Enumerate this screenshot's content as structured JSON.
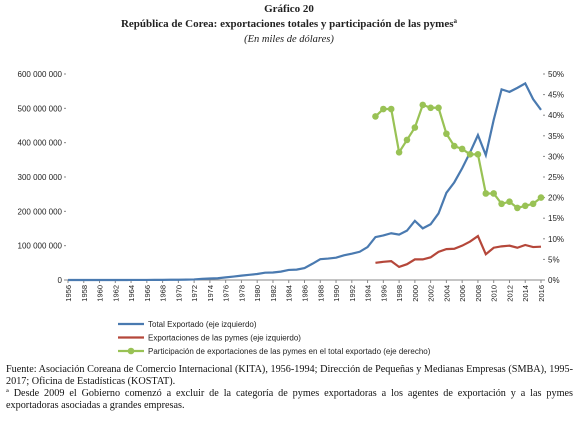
{
  "chart_data": {
    "type": "line",
    "title": "Gráfico 20",
    "subtitle": "República de Corea: exportaciones totales y participación de las pymes",
    "subtitle_superscript": "a",
    "unit_note": "(En miles de dólares)",
    "x": [
      1956,
      1957,
      1958,
      1959,
      1960,
      1961,
      1962,
      1963,
      1964,
      1965,
      1966,
      1967,
      1968,
      1969,
      1970,
      1971,
      1972,
      1973,
      1974,
      1975,
      1976,
      1977,
      1978,
      1979,
      1980,
      1981,
      1982,
      1983,
      1984,
      1985,
      1986,
      1987,
      1988,
      1989,
      1990,
      1991,
      1992,
      1993,
      1994,
      1995,
      1996,
      1997,
      1998,
      1999,
      2000,
      2001,
      2002,
      2003,
      2004,
      2005,
      2006,
      2007,
      2008,
      2009,
      2010,
      2011,
      2012,
      2013,
      2014,
      2015,
      2016
    ],
    "xlim": [
      1956,
      2016
    ],
    "xticks": [
      1956,
      1958,
      1960,
      1962,
      1964,
      1966,
      1968,
      1970,
      1972,
      1974,
      1976,
      1978,
      1980,
      1982,
      1984,
      1986,
      1988,
      1990,
      1992,
      1994,
      1996,
      1998,
      2000,
      2002,
      2004,
      2006,
      2008,
      2010,
      2012,
      2014,
      2016
    ],
    "ylim": [
      0,
      600000000
    ],
    "yticks": [
      0,
      {
        "value": 100000000,
        "label": "100 000 000"
      },
      {
        "value": 200000000,
        "label": "200 000 000"
      },
      {
        "value": 300000000,
        "label": "300 000 000"
      },
      {
        "value": 400000000,
        "label": "400 000 000"
      },
      {
        "value": 500000000,
        "label": "500 000 000"
      },
      {
        "value": 600000000,
        "label": "600 000 000"
      }
    ],
    "y2lim": [
      0,
      50
    ],
    "y2ticks": [
      {
        "value": 0,
        "label": "0%"
      },
      {
        "value": 5,
        "label": "5%"
      },
      {
        "value": 10,
        "label": "10%"
      },
      {
        "value": 15,
        "label": "15%"
      },
      {
        "value": 20,
        "label": "20%"
      },
      {
        "value": 25,
        "label": "25%"
      },
      {
        "value": 30,
        "label": "30%"
      },
      {
        "value": 35,
        "label": "35%"
      },
      {
        "value": 40,
        "label": "40%"
      },
      {
        "value": 45,
        "label": "45%"
      },
      {
        "value": 50,
        "label": "50%"
      }
    ],
    "series": [
      {
        "name": "Total Exportado (eje izquierdo)",
        "color": "#4a7ab0",
        "axis": "y",
        "values": [
          25000,
          22000,
          17000,
          20000,
          33000,
          41000,
          55000,
          87000,
          119000,
          175000,
          250000,
          320000,
          455000,
          623000,
          835000,
          1068000,
          1624000,
          3225000,
          4460000,
          5081000,
          7715000,
          10047000,
          12711000,
          15056000,
          17505000,
          21254000,
          21853000,
          24445000,
          29245000,
          30283000,
          34715000,
          47281000,
          60696000,
          62377000,
          65016000,
          71870000,
          76632000,
          82236000,
          96013000,
          125058000,
          129715000,
          136164000,
          132313000,
          143686000,
          172268000,
          150439000,
          162471000,
          193817000,
          253845000,
          284419000,
          325465000,
          371489000,
          422007000,
          363534000,
          466384000,
          555214000,
          547870000,
          559632000,
          572665000,
          526757000,
          495426000
        ]
      },
      {
        "name": "Exportaciones de las pymes (eje izquierdo)",
        "color": "#b5473a",
        "axis": "y",
        "values": [
          null,
          null,
          null,
          null,
          null,
          null,
          null,
          null,
          null,
          null,
          null,
          null,
          null,
          null,
          null,
          null,
          null,
          null,
          null,
          null,
          null,
          null,
          null,
          null,
          null,
          null,
          null,
          null,
          null,
          null,
          null,
          null,
          null,
          null,
          null,
          null,
          null,
          null,
          null,
          50000000,
          53000000,
          55000000,
          38000000,
          46000000,
          60000000,
          60000000,
          66000000,
          82000000,
          90000000,
          91000000,
          100000000,
          112000000,
          128000000,
          75000000,
          94000000,
          98000000,
          100000000,
          94000000,
          102000000,
          96000000,
          97000000
        ]
      },
      {
        "name": "Participación de exportaciones de las pymes en el total exportado (eje derecho)",
        "color": "#99c255",
        "axis": "y2",
        "markers": true,
        "values": [
          null,
          null,
          null,
          null,
          null,
          null,
          null,
          null,
          null,
          null,
          null,
          null,
          null,
          null,
          null,
          null,
          null,
          null,
          null,
          null,
          null,
          null,
          null,
          null,
          null,
          null,
          null,
          null,
          null,
          null,
          null,
          null,
          null,
          null,
          null,
          null,
          null,
          null,
          null,
          39.7,
          41.5,
          41.5,
          31,
          34,
          37,
          42.5,
          41.8,
          41.8,
          35.5,
          32.5,
          31.8,
          30.5,
          30.5,
          21,
          21,
          18.5,
          19,
          17.5,
          18,
          18.5,
          20
        ]
      }
    ],
    "notes": [
      "Fuente: Asociación Coreana de Comercio Internacional (KITA), 1956-1994; Dirección de Pequeñas y Medianas Empresas (SMBA), 1995-2017; Oficina de Estadísticas (KOSTAT).",
      "ª Desde 2009 el Gobierno comenzó a excluir de la categoría de pymes exportadoras a los agentes de exportación y a las pymes exportadoras asociadas a grandes empresas."
    ]
  }
}
